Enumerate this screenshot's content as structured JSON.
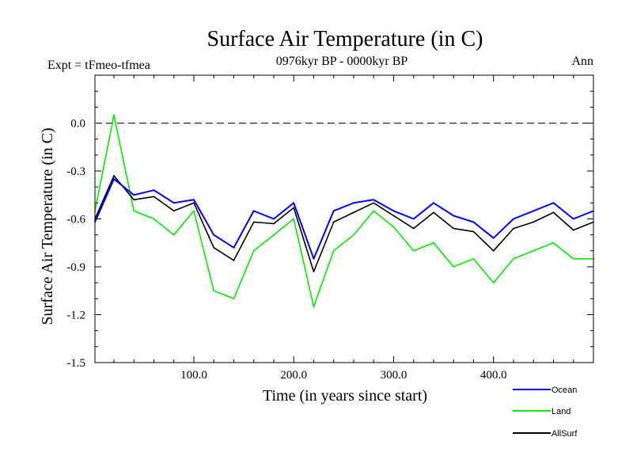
{
  "header": {
    "title": "Surface Air Temperature (in C)",
    "expt": "Expt = tFmeo-tfmea",
    "period": "0976kyr BP - 0000kyr BP",
    "season": "Ann"
  },
  "chart_data": {
    "type": "line",
    "title": "Surface Air Temperature (in C)",
    "xlabel": "Time (in years since start)",
    "ylabel": "Surface Air Temperature (in C)",
    "xlim": [
      1,
      500
    ],
    "ylim": [
      -1.5,
      0.3
    ],
    "x_ticks": [
      100,
      200,
      300,
      400
    ],
    "x_tick_labels": [
      "100.0",
      "200.0",
      "300.0",
      "400.0"
    ],
    "y_ticks": [
      0.0,
      -0.3,
      -0.6,
      -0.9,
      -1.2,
      -1.5
    ],
    "y_tick_labels": [
      "0.0",
      "-0.3",
      "-0.6",
      "-0.9",
      "-1.2",
      "-1.5"
    ],
    "reference_line": {
      "y": 0.0,
      "style": "dashed"
    },
    "x": [
      1,
      20,
      40,
      60,
      80,
      100,
      120,
      140,
      160,
      180,
      200,
      220,
      240,
      260,
      280,
      300,
      320,
      340,
      360,
      380,
      400,
      420,
      440,
      460,
      480,
      500
    ],
    "series": [
      {
        "name": "Ocean",
        "color": "#0000ff",
        "values": [
          -0.62,
          -0.35,
          -0.45,
          -0.42,
          -0.5,
          -0.48,
          -0.7,
          -0.78,
          -0.55,
          -0.6,
          -0.5,
          -0.85,
          -0.55,
          -0.5,
          -0.48,
          -0.55,
          -0.6,
          -0.5,
          -0.58,
          -0.62,
          -0.72,
          -0.6,
          -0.55,
          -0.5,
          -0.6,
          -0.55
        ]
      },
      {
        "name": "Land",
        "color": "#00ee00",
        "values": [
          -0.55,
          0.05,
          -0.55,
          -0.6,
          -0.7,
          -0.55,
          -1.05,
          -1.1,
          -0.8,
          -0.7,
          -0.6,
          -1.15,
          -0.8,
          -0.7,
          -0.55,
          -0.65,
          -0.8,
          -0.75,
          -0.9,
          -0.85,
          -1.0,
          -0.85,
          -0.8,
          -0.75,
          -0.85,
          -0.85
        ]
      },
      {
        "name": "AllSurf",
        "color": "#000000",
        "values": [
          -0.6,
          -0.33,
          -0.48,
          -0.46,
          -0.55,
          -0.5,
          -0.78,
          -0.86,
          -0.62,
          -0.63,
          -0.53,
          -0.93,
          -0.62,
          -0.56,
          -0.5,
          -0.58,
          -0.66,
          -0.56,
          -0.66,
          -0.68,
          -0.8,
          -0.66,
          -0.62,
          -0.56,
          -0.67,
          -0.62
        ]
      }
    ],
    "legend": {
      "placement": "bottom-right",
      "entries": [
        "Ocean",
        "Land",
        "AllSurf"
      ]
    }
  }
}
